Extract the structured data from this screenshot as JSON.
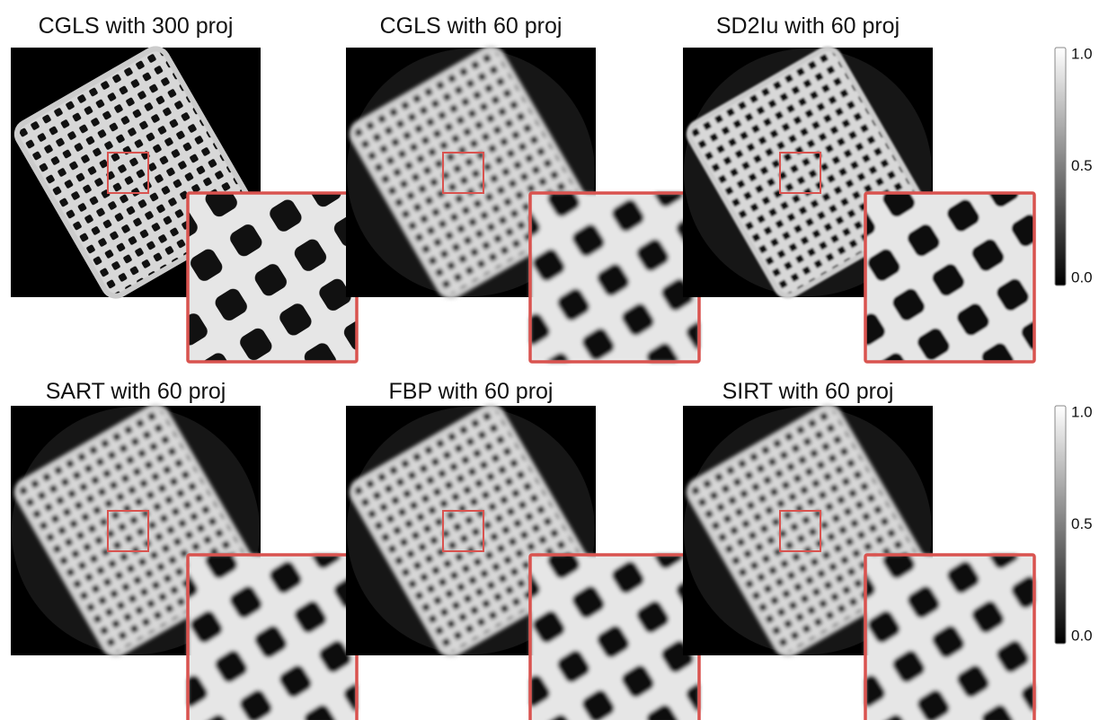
{
  "panels": [
    {
      "title": "CGLS with 300 proj"
    },
    {
      "title": "CGLS with 60 proj"
    },
    {
      "title": "SD2Iu with 60 proj"
    },
    {
      "title": "SART with 60 proj"
    },
    {
      "title": "FBP with 60 proj"
    },
    {
      "title": "SIRT with 60 proj"
    }
  ],
  "colorbars": [
    {
      "ticks": [
        "1.0",
        "0.5",
        "0.0"
      ]
    },
    {
      "ticks": [
        "1.0",
        "0.5",
        "0.0"
      ]
    }
  ]
}
